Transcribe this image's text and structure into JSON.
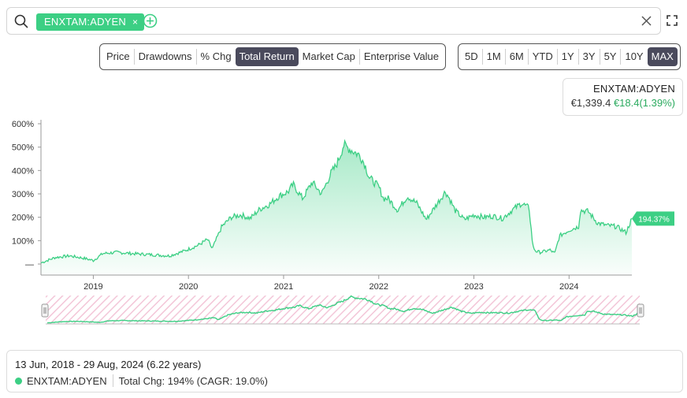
{
  "search": {
    "chip_label": "ENXTAM:ADYEN",
    "chip_remove": "×"
  },
  "metrics": [
    "Price",
    "Drawdowns",
    "% Chg",
    "Total Return",
    "Market Cap",
    "Enterprise Value"
  ],
  "metric_active": "Total Return",
  "ranges": [
    "5D",
    "1M",
    "6M",
    "YTD",
    "1Y",
    "3Y",
    "5Y",
    "10Y",
    "MAX"
  ],
  "range_active": "MAX",
  "quote": {
    "ticker": "ENXTAM:ADYEN",
    "price": "€1,339.4",
    "change": "€18.4(1.39%)"
  },
  "colors": {
    "series": "#3ccf84",
    "active_button": "#4a4a5c",
    "change_positive": "#2aaa5e",
    "navigator_hatch": "#f3c6d8"
  },
  "chart_data": {
    "type": "area",
    "series": [
      {
        "name": "ENXTAM:ADYEN",
        "x": [
          2018.45,
          2018.6,
          2018.75,
          2018.9,
          2019.0,
          2019.1,
          2019.25,
          2019.4,
          2019.6,
          2019.8,
          2019.95,
          2020.1,
          2020.2,
          2020.25,
          2020.35,
          2020.45,
          2020.55,
          2020.65,
          2020.75,
          2020.85,
          2020.95,
          2021.05,
          2021.1,
          2021.2,
          2021.3,
          2021.4,
          2021.5,
          2021.55,
          2021.6,
          2021.63,
          2021.7,
          2021.8,
          2021.85,
          2021.9,
          2022.0,
          2022.05,
          2022.1,
          2022.2,
          2022.3,
          2022.4,
          2022.5,
          2022.6,
          2022.7,
          2022.75,
          2022.8,
          2022.9,
          2023.0,
          2023.1,
          2023.2,
          2023.3,
          2023.4,
          2023.5,
          2023.58,
          2023.62,
          2023.65,
          2023.7,
          2023.8,
          2023.85,
          2023.9,
          2024.0,
          2024.1,
          2024.12,
          2024.2,
          2024.3,
          2024.4,
          2024.5,
          2024.6,
          2024.66
        ],
        "values": [
          5,
          28,
          35,
          25,
          15,
          45,
          50,
          45,
          40,
          35,
          55,
          80,
          105,
          65,
          160,
          200,
          210,
          195,
          235,
          255,
          290,
          310,
          340,
          280,
          350,
          300,
          390,
          420,
          470,
          510,
          490,
          465,
          430,
          370,
          330,
          280,
          280,
          230,
          290,
          260,
          190,
          250,
          310,
          275,
          230,
          190,
          210,
          200,
          205,
          195,
          230,
          260,
          240,
          75,
          55,
          50,
          60,
          45,
          120,
          145,
          160,
          230,
          225,
          175,
          165,
          160,
          135,
          194.37
        ]
      }
    ],
    "last_value_label": "194.37%",
    "y_ticks": [
      "600%",
      "500%",
      "400%",
      "300%",
      "200%",
      "100%",
      "—"
    ],
    "y_tick_values": [
      600,
      500,
      400,
      300,
      200,
      100,
      0
    ],
    "x_ticks": [
      "2019",
      "2020",
      "2021",
      "2022",
      "2023",
      "2024"
    ],
    "x_tick_values": [
      2019,
      2020,
      2021,
      2022,
      2023,
      2024
    ],
    "xlim": [
      2018.45,
      2024.66
    ],
    "ylim": [
      -50,
      620
    ],
    "grid": false,
    "legend": "bottom"
  },
  "summary": {
    "date_range": "13 Jun, 2018 - 29 Aug, 2024 (6.22 years)",
    "ticker": "ENXTAM:ADYEN",
    "total_change": "Total Chg: 194% (CAGR: 19.0%)"
  }
}
